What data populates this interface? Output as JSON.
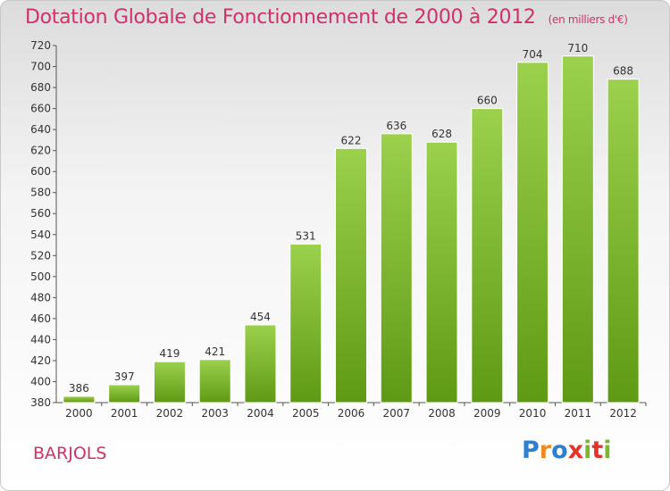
{
  "chart_data": {
    "type": "bar",
    "title": "Dotation Globale de Fonctionnement de 2000 à 2012",
    "subtitle": "(en milliers d'€)",
    "categories": [
      "2000",
      "2001",
      "2002",
      "2003",
      "2004",
      "2005",
      "2006",
      "2007",
      "2008",
      "2009",
      "2010",
      "2011",
      "2012"
    ],
    "values": [
      386,
      397,
      419,
      421,
      454,
      531,
      622,
      636,
      628,
      660,
      704,
      710,
      688
    ],
    "ylim": [
      380,
      720
    ],
    "yticks": [
      380,
      400,
      420,
      440,
      460,
      480,
      500,
      520,
      540,
      560,
      580,
      600,
      620,
      640,
      660,
      680,
      700,
      720
    ],
    "grid": false,
    "bar_color_top": "#9bd14c",
    "bar_color_bottom": "#5f9a14"
  },
  "commune": "BARJOLS",
  "logo": {
    "letters": [
      "P",
      "r",
      "o",
      "x",
      "i",
      "t",
      "i"
    ],
    "colors": [
      "#2e7fcf",
      "#f08a1e",
      "#2e7fcf",
      "#e6332a",
      "#7cb82f",
      "#e6332a",
      "#7cb82f"
    ]
  },
  "colors": {
    "accent": "#d0306b"
  }
}
